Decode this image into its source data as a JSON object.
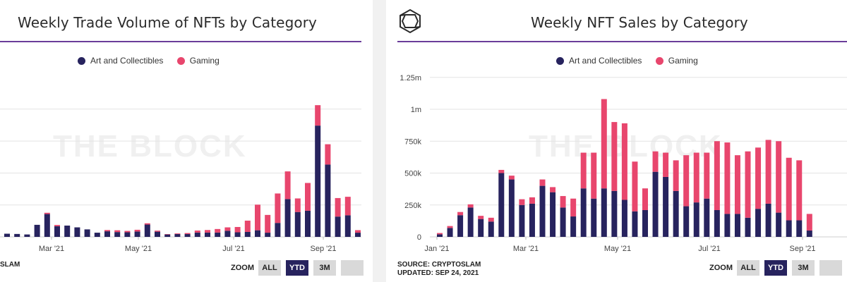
{
  "colors": {
    "art": "#27235e",
    "gaming": "#e8466d",
    "accent": "#6a3d9a",
    "grid": "#e3e3e3",
    "watermark": "#f0f0f0"
  },
  "charts": [
    {
      "title": "Weekly Trade Volume of NFTs by Category",
      "legend": [
        "Art and Collectibles",
        "Gaming"
      ],
      "watermark": "THE BLOCK",
      "source_lines": [
        "SLAM",
        ""
      ],
      "zoom": {
        "label": "ZOOM",
        "buttons": [
          "ALL",
          "YTD",
          "3M",
          ""
        ],
        "active": "YTD"
      }
    },
    {
      "title": "Weekly NFT Sales by Category",
      "legend": [
        "Art and Collectibles",
        "Gaming"
      ],
      "watermark": "THE BLOCK",
      "source_lines": [
        "SOURCE: CRYPTOSLAM",
        "UPDATED: SEP 24, 2021"
      ],
      "zoom": {
        "label": "ZOOM",
        "buttons": [
          "ALL",
          "YTD",
          "3M",
          ""
        ],
        "active": "YTD"
      }
    }
  ],
  "chart_data": [
    {
      "type": "bar",
      "stacked": true,
      "title": "Weekly Trade Volume of NFTs by Category",
      "x_tick_labels": [
        "Mar '21",
        "May '21",
        "Jul '21",
        "Sep '21"
      ],
      "y_tick_labels": [],
      "grid": true,
      "legend_position": "top-center",
      "series": [
        {
          "name": "Art and Collectibles",
          "values": [
            0.25,
            0.23,
            0.19,
            0.95,
            1.8,
            0.84,
            0.89,
            0.75,
            0.59,
            0.33,
            0.44,
            0.38,
            0.36,
            0.42,
            0.97,
            0.41,
            0.19,
            0.22,
            0.22,
            0.34,
            0.34,
            0.34,
            0.48,
            0.36,
            0.39,
            0.52,
            0.33,
            1.1,
            2.98,
            1.96,
            2.06,
            8.77,
            5.7,
            1.6,
            1.7,
            0.33
          ]
        },
        {
          "name": "Gaming",
          "values": [
            0,
            0,
            0,
            0,
            0.1,
            0.1,
            0,
            0,
            0,
            0,
            0.1,
            0.14,
            0.11,
            0.14,
            0.1,
            0.08,
            0.03,
            0.05,
            0.08,
            0.16,
            0.2,
            0.28,
            0.27,
            0.42,
            0.89,
            2.02,
            1.4,
            2.32,
            2.18,
            1.07,
            2.19,
            1.61,
            1.6,
            1.46,
            1.46,
            0.2
          ]
        }
      ]
    },
    {
      "type": "bar",
      "stacked": true,
      "title": "Weekly NFT Sales by Category",
      "x_tick_labels": [
        "Jan '21",
        "Mar '21",
        "May '21",
        "Jul '21",
        "Sep '21"
      ],
      "y_tick_labels": [
        "0",
        "250k",
        "500k",
        "750k",
        "1m",
        "1.25m"
      ],
      "ylim": [
        0,
        1250000
      ],
      "grid": true,
      "legend_position": "top-center",
      "series": [
        {
          "name": "Art and Collectibles",
          "values": [
            20000,
            70000,
            170000,
            230000,
            140000,
            120000,
            500000,
            450000,
            250000,
            260000,
            400000,
            350000,
            230000,
            160000,
            380000,
            300000,
            380000,
            360000,
            290000,
            200000,
            210000,
            510000,
            470000,
            360000,
            240000,
            270000,
            300000,
            210000,
            180000,
            180000,
            150000,
            220000,
            260000,
            190000,
            130000,
            130000,
            50000
          ]
        },
        {
          "name": "Gaming",
          "values": [
            10000,
            15000,
            25000,
            25000,
            25000,
            30000,
            25000,
            30000,
            45000,
            50000,
            50000,
            40000,
            90000,
            140000,
            280000,
            360000,
            700000,
            540000,
            600000,
            390000,
            170000,
            160000,
            190000,
            240000,
            400000,
            390000,
            360000,
            540000,
            560000,
            460000,
            520000,
            480000,
            500000,
            560000,
            490000,
            470000,
            130000
          ]
        }
      ]
    }
  ]
}
